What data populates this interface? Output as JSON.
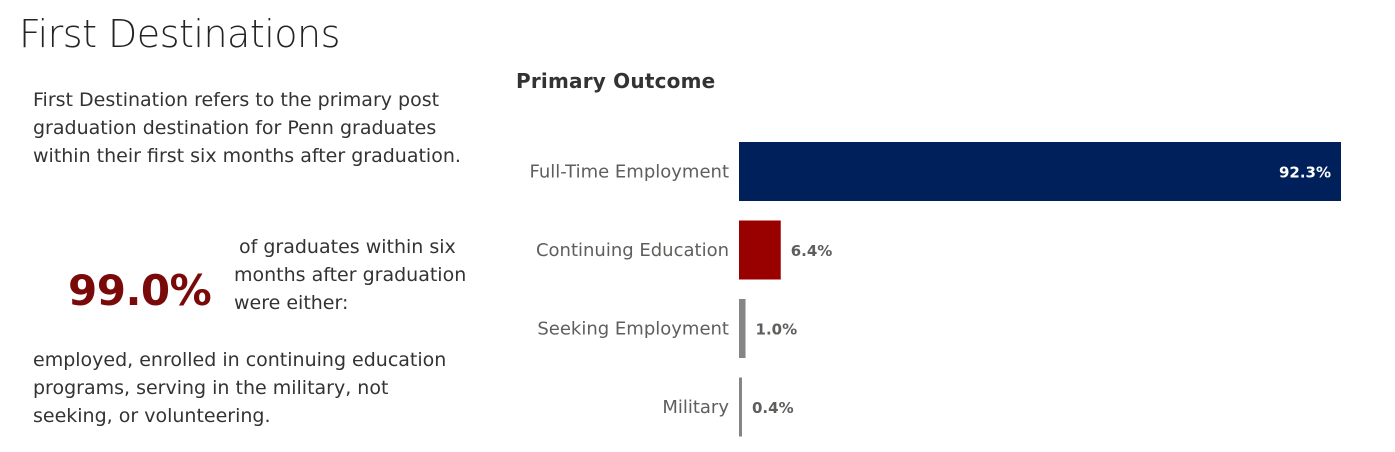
{
  "page": {
    "title": "First Destinations",
    "intro_text": "First Destination refers to the primary post graduation destination for Penn graduates within their first six months after graduation.",
    "kpi_value": "99.0%",
    "kpi_text_line1": "of graduates within six",
    "kpi_text_line2": "months after graduation were either:",
    "outro_text": "employed, enrolled in continuing education programs, serving in the military, not seeking, or volunteering."
  },
  "colors": {
    "kpi": "#7a0a0a",
    "full_time": "#00205b",
    "continuing": "#990000",
    "seeking": "#858585",
    "military": "#858585"
  },
  "chart_data": {
    "type": "bar",
    "orientation": "horizontal",
    "title": "Primary Outcome",
    "categories": [
      "Full-Time Employment",
      "Continuing Education",
      "Seeking Employment",
      "Military"
    ],
    "values": [
      92.3,
      6.4,
      1.0,
      0.4
    ],
    "value_labels": [
      "92.3%",
      "6.4%",
      "1.0%",
      "0.4%"
    ],
    "colors": [
      "#00205b",
      "#990000",
      "#858585",
      "#858585"
    ],
    "xlim": [
      0,
      92.3
    ],
    "grid": false,
    "legend": "none"
  }
}
